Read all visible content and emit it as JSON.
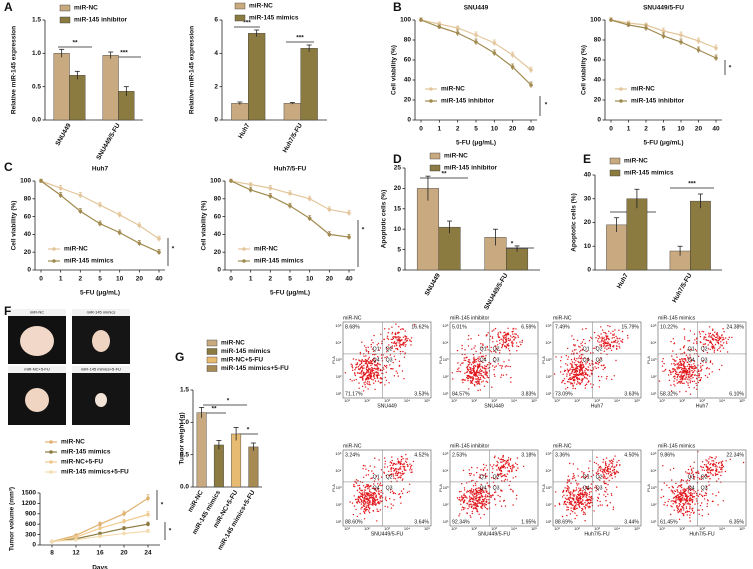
{
  "panel_labels": [
    "A",
    "B",
    "C",
    "D",
    "E",
    "F",
    "G"
  ],
  "tumor_photos": {
    "labels": [
      "miR-NC",
      "miR-145 mimics",
      "miR-NC+5-FU",
      "miR-145 mimics+5-FU"
    ]
  },
  "flow_cytometry": {
    "y_axis_label": "PI-A",
    "quadrant_labels": [
      "Q1",
      "Q2",
      "Q3",
      "Q4"
    ],
    "axis_tick_labels": [
      "10¹",
      "10²",
      "10³",
      "10⁴",
      "10⁵"
    ],
    "plots": [
      {
        "group": "miR-NC",
        "cell_line": "SNU449",
        "q1": "8.68%",
        "q2": "16.62%",
        "q3": "3.53%",
        "q4": "71.17%"
      },
      {
        "group": "miR-145 inhibitor",
        "cell_line": "SNU449",
        "q1": "5.01%",
        "q2": "6.59%",
        "q3": "3.83%",
        "q4": "84.57%"
      },
      {
        "group": "miR-NC",
        "cell_line": "Huh7",
        "q1": "7.49%",
        "q2": "15.79%",
        "q3": "3.63%",
        "q4": "73.09%"
      },
      {
        "group": "miR-145 mimics",
        "cell_line": "Huh7",
        "q1": "10.22%",
        "q2": "24.38%",
        "q3": "6.10%",
        "q4": "58.32%"
      },
      {
        "group": "miR-NC",
        "cell_line": "SNU449/5-FU",
        "q1": "3.24%",
        "q2": "4.52%",
        "q3": "3.64%",
        "q4": "88.60%"
      },
      {
        "group": "miR-145 inhibitor",
        "cell_line": "SNU449/5-FU",
        "q1": "2.53%",
        "q2": "3.18%",
        "q3": "1.95%",
        "q4": "92.34%"
      },
      {
        "group": "miR-NC",
        "cell_line": "Huh7/5-FU",
        "q1": "3.36%",
        "q2": "4.50%",
        "q3": "3.44%",
        "q4": "88.69%"
      },
      {
        "group": "miR-145 mimics",
        "cell_line": "Huh7/5-FU",
        "q1": "9.86%",
        "q2": "22.34%",
        "q3": "6.35%",
        "q4": "61.45%"
      }
    ]
  },
  "chart_data": [
    {
      "type": "bar",
      "y_label": "Relative miR-145 expression",
      "categories": [
        "SNU449",
        "SNU449/5-FU"
      ],
      "series": [
        {
          "name": "miR-NC",
          "color": "#c9a97f",
          "values": [
            1.0,
            0.97
          ],
          "errors": [
            0.06,
            0.05
          ]
        },
        {
          "name": "miR-145 inhibitor",
          "color": "#8b7b40",
          "values": [
            0.67,
            0.43
          ],
          "errors": [
            0.06,
            0.07
          ]
        }
      ],
      "ylim": [
        0,
        1.5
      ],
      "yticks": [
        {
          "value": 0,
          "label": "0.0"
        },
        0.5,
        {
          "value": 1,
          "label": "1.0"
        },
        1.5
      ],
      "annotations": [
        "**",
        "***"
      ]
    },
    {
      "type": "bar",
      "y_label": "Relative miR-145 expression",
      "categories": [
        "Huh7",
        "Huh7/5-FU"
      ],
      "series": [
        {
          "name": "miR-NC",
          "color": "#c9a97f",
          "values": [
            1.0,
            1.0
          ],
          "errors": [
            0.08,
            0.05
          ]
        },
        {
          "name": "miR-145 mimics",
          "color": "#8b7b40",
          "values": [
            5.2,
            4.3
          ],
          "errors": [
            0.2,
            0.2
          ]
        }
      ],
      "ylim": [
        0,
        6
      ],
      "yticks": [
        0,
        2,
        4,
        6
      ],
      "annotations": [
        "***",
        "***"
      ]
    },
    {
      "type": "line",
      "title": "SNU449",
      "x_label": "5-FU (μg/mL)",
      "y_label": "Cell viability (%)",
      "categories": [
        "0",
        "1",
        "2",
        "5",
        "10",
        "20",
        "40"
      ],
      "series": [
        {
          "name": "miR-NC",
          "color": "#e3c69b",
          "values": [
            100,
            96,
            92,
            85,
            77,
            65,
            50
          ],
          "errors": [
            2,
            2,
            2,
            3,
            3,
            3,
            3
          ]
        },
        {
          "name": "miR-145 inhibitor",
          "color": "#a08a4f",
          "values": [
            100,
            93,
            87,
            78,
            67,
            53,
            35
          ],
          "errors": [
            2,
            2,
            3,
            3,
            3,
            3,
            3
          ]
        }
      ],
      "ylim": [
        0,
        100
      ],
      "yticks": [
        0,
        20,
        40,
        60,
        80,
        100
      ],
      "annotations": [
        "*"
      ]
    },
    {
      "type": "line",
      "title": "SNU449/5-FU",
      "x_label": "5-FU (μg/mL)",
      "y_label": "Cell viability (%)",
      "categories": [
        "0",
        "1",
        "2",
        "5",
        "10",
        "20",
        "40"
      ],
      "series": [
        {
          "name": "miR-NC",
          "color": "#e3c69b",
          "values": [
            100,
            97,
            95,
            89,
            85,
            79,
            72
          ],
          "errors": [
            2,
            2,
            2,
            3,
            3,
            3,
            3
          ]
        },
        {
          "name": "miR-145 inhibitor",
          "color": "#a08a4f",
          "values": [
            100,
            95,
            92,
            84,
            78,
            70,
            62
          ],
          "errors": [
            2,
            2,
            3,
            3,
            3,
            3,
            3
          ]
        }
      ],
      "ylim": [
        0,
        100
      ],
      "yticks": [
        0,
        20,
        40,
        60,
        80,
        100
      ],
      "annotations": [
        "*"
      ]
    },
    {
      "type": "line",
      "title": "Huh7",
      "x_label": "5-FU (μg/mL)",
      "y_label": "Cell viability (%)",
      "categories": [
        "0",
        "1",
        "2",
        "5",
        "10",
        "20",
        "40"
      ],
      "series": [
        {
          "name": "miR-NC",
          "color": "#e3c69b",
          "values": [
            100,
            92,
            84,
            73,
            62,
            50,
            35
          ],
          "errors": [
            2,
            3,
            3,
            3,
            3,
            3,
            3
          ]
        },
        {
          "name": "miR-145 mimics",
          "color": "#a08a4f",
          "values": [
            100,
            84,
            66,
            52,
            42,
            30,
            20
          ],
          "errors": [
            2,
            3,
            3,
            3,
            3,
            3,
            3
          ]
        }
      ],
      "ylim": [
        0,
        100
      ],
      "yticks": [
        0,
        20,
        40,
        60,
        80,
        100
      ],
      "annotations": [
        "*"
      ]
    },
    {
      "type": "line",
      "title": "Huh7/5-FU",
      "x_label": "5-FU (μg/mL)",
      "y_label": "Cell viability (%)",
      "categories": [
        "0",
        "1",
        "2",
        "5",
        "10",
        "20",
        "40"
      ],
      "series": [
        {
          "name": "miR-NC",
          "color": "#e3c69b",
          "values": [
            100,
            96,
            92,
            86,
            80,
            68,
            64
          ],
          "errors": [
            2,
            2,
            3,
            3,
            3,
            3,
            3
          ]
        },
        {
          "name": "miR-145 mimics",
          "color": "#a08a4f",
          "values": [
            100,
            90,
            83,
            72,
            58,
            40,
            37
          ],
          "errors": [
            2,
            3,
            3,
            3,
            3,
            3,
            3
          ]
        }
      ],
      "ylim": [
        0,
        100
      ],
      "yticks": [
        0,
        20,
        40,
        60,
        80,
        100
      ],
      "annotations": [
        "*"
      ]
    },
    {
      "type": "bar",
      "y_label": "Apoptotic cells (%)",
      "categories": [
        "SNU449",
        "SNU449/5-FU"
      ],
      "series": [
        {
          "name": "miR-NC",
          "color": "#c9a97f",
          "values": [
            20,
            8
          ],
          "errors": [
            3,
            2
          ]
        },
        {
          "name": "miR-145 inhibitor",
          "color": "#8b7b40",
          "values": [
            10.5,
            5.2
          ],
          "errors": [
            1.5,
            0.7
          ]
        }
      ],
      "ylim": [
        0,
        25
      ],
      "yticks": [
        0,
        5,
        10,
        15,
        20,
        25
      ],
      "annotations": [
        "**",
        "*"
      ]
    },
    {
      "type": "bar",
      "y_label": "Apoptotic cells (%)",
      "categories": [
        "Huh7",
        "Huh7/5-FU"
      ],
      "series": [
        {
          "name": "miR-NC",
          "color": "#c9a97f",
          "values": [
            19,
            8
          ],
          "errors": [
            3,
            2
          ]
        },
        {
          "name": "miR-145 mimics",
          "color": "#8b7b40",
          "values": [
            30,
            29
          ],
          "errors": [
            4,
            3
          ]
        }
      ],
      "ylim": [
        0,
        40
      ],
      "yticks": [
        0,
        10,
        20,
        30,
        40
      ],
      "annotations": [
        "*",
        "***"
      ]
    },
    {
      "type": "line",
      "x_label": "Days",
      "y_label": "Tumor volume (mm³)",
      "x": [
        8,
        12,
        16,
        20,
        24
      ],
      "xlim": [
        6,
        26
      ],
      "xticks": [
        8,
        12,
        16,
        20,
        24
      ],
      "series": [
        {
          "name": "miR-NC",
          "color": "#e0b170",
          "values": [
            100,
            280,
            600,
            900,
            1350
          ],
          "errors": [
            20,
            40,
            60,
            80,
            100
          ]
        },
        {
          "name": "miR-145 mimics",
          "color": "#8b7b40",
          "values": [
            100,
            180,
            330,
            480,
            600
          ],
          "errors": [
            20,
            30,
            40,
            50,
            60
          ]
        },
        {
          "name": "miR-NC+5-FU",
          "color": "#f0c98e",
          "values": [
            100,
            230,
            480,
            680,
            880
          ],
          "errors": [
            20,
            30,
            50,
            60,
            80
          ]
        },
        {
          "name": "miR-145 mimics+5-FU",
          "color": "#f3dcae",
          "values": [
            100,
            150,
            250,
            330,
            400
          ],
          "errors": [
            20,
            25,
            30,
            40,
            50
          ]
        }
      ],
      "ylim": [
        0,
        1500
      ],
      "yticks": [
        0,
        300,
        600,
        900,
        1200,
        1500
      ],
      "annotations": [
        "*",
        "*"
      ]
    },
    {
      "type": "bar",
      "y_label": "Tumor weight (g)",
      "categories": [
        "miR-NC",
        "miR-145 mimics",
        "miR-NC+5-FU",
        "miR-145 mimics+5-FU"
      ],
      "values": [
        1.15,
        0.65,
        0.82,
        0.62
      ],
      "errors": [
        0.08,
        0.07,
        0.1,
        0.06
      ],
      "colors": [
        "#c9a97f",
        "#8b7b40",
        "#e8bb72",
        "#a88a55"
      ],
      "ylim": [
        0,
        1.5
      ],
      "yticks": [
        {
          "value": 0,
          "label": "0.0"
        },
        0.5,
        {
          "value": 1,
          "label": "1.0"
        },
        1.5
      ],
      "annotations": [
        "**",
        "*",
        "*"
      ]
    }
  ]
}
